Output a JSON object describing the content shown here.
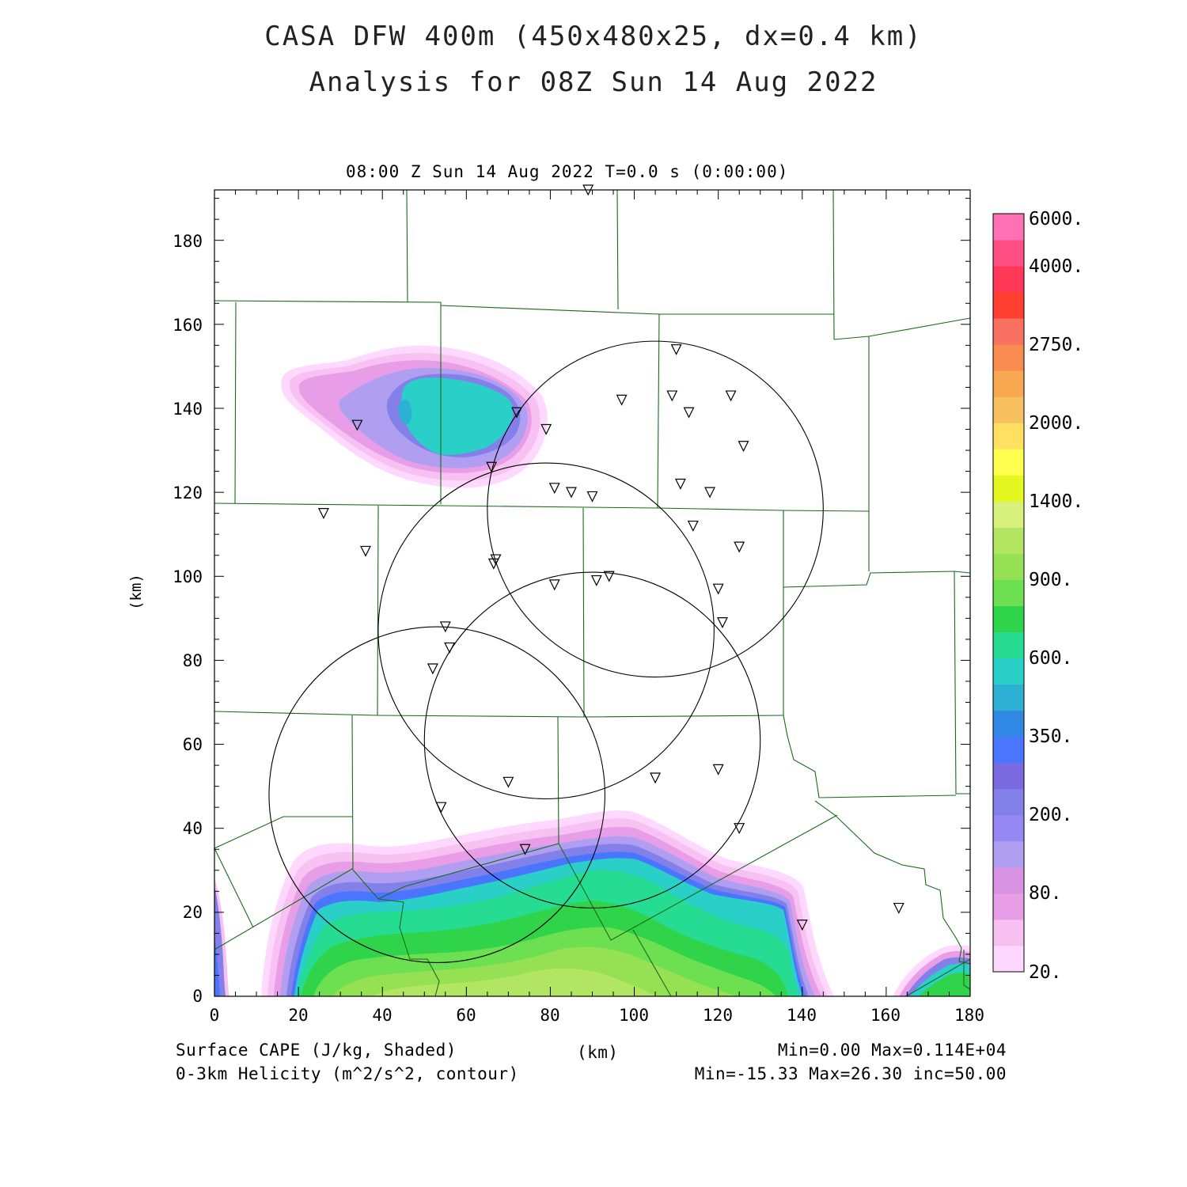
{
  "header": {
    "title_line1": "CASA DFW 400m (450x480x25, dx=0.4 km)",
    "title_line2": "Analysis for 08Z Sun 14 Aug 2022",
    "valid_time": "08:00 Z Sun 14 Aug 2022    T=0.0 s (0:00:00)"
  },
  "axes": {
    "x_label": "(km)",
    "y_label": "(km)",
    "x_range": [
      0,
      180
    ],
    "y_range": [
      0,
      192
    ],
    "x_ticks": [
      "0",
      "20",
      "40",
      "60",
      "80",
      "100",
      "120",
      "140",
      "160",
      "180"
    ],
    "y_ticks": [
      "0",
      "20",
      "40",
      "60",
      "80",
      "100",
      "120",
      "140",
      "160",
      "180"
    ]
  },
  "colorbar": {
    "labels": [
      "20.",
      "80.",
      "200.",
      "350.",
      "600.",
      "900.",
      "1400.",
      "2000.",
      "2750.",
      "4000.",
      "6000."
    ],
    "colors": [
      "#ffd8ff",
      "#f7c2f2",
      "#e79ee6",
      "#d892e2",
      "#b09ef0",
      "#9688f4",
      "#8480ea",
      "#7a6ce0",
      "#4a76ff",
      "#3088e4",
      "#2cb0d4",
      "#2ad0c8",
      "#26dc92",
      "#30d44a",
      "#6ce050",
      "#96e054",
      "#b2e662",
      "#d8f07c",
      "#e4f820",
      "#ffff50",
      "#ffe060",
      "#f7c060",
      "#f8a850",
      "#f88c50",
      "#f87060",
      "#ff4030",
      "#ff3858",
      "#ff4f85",
      "#ff70b4"
    ]
  },
  "footer": {
    "left_line1": "Surface CAPE (J/kg, Shaded)",
    "left_line2": "0-3km Helicity (m^2/s^2, contour)",
    "center_label": "(km)",
    "right_line1": "Min=0.00 Max=0.114E+04",
    "right_line2": "Min=-15.33 Max=26.30 inc=50.00"
  },
  "map_data": {
    "radar_rings_km": [
      {
        "cx": 105,
        "cy": 116,
        "r": 40
      },
      {
        "cx": 79,
        "cy": 87,
        "r": 40
      },
      {
        "cx": 90,
        "cy": 61,
        "r": 40
      },
      {
        "cx": 53,
        "cy": 48,
        "r": 40
      }
    ],
    "stations_km": [
      [
        89,
        192
      ],
      [
        110,
        154
      ],
      [
        97,
        142
      ],
      [
        109,
        143
      ],
      [
        123,
        143
      ],
      [
        113,
        139
      ],
      [
        126,
        131
      ],
      [
        79,
        135
      ],
      [
        72,
        139
      ],
      [
        34,
        136
      ],
      [
        66,
        126
      ],
      [
        81,
        121
      ],
      [
        85,
        120
      ],
      [
        90,
        119
      ],
      [
        111,
        122
      ],
      [
        118,
        120
      ],
      [
        26,
        115
      ],
      [
        114,
        112
      ],
      [
        125,
        107
      ],
      [
        36,
        106
      ],
      [
        67,
        104
      ],
      [
        66.5,
        103
      ],
      [
        81,
        98
      ],
      [
        91,
        99
      ],
      [
        94,
        100
      ],
      [
        120,
        97
      ],
      [
        121,
        89
      ],
      [
        55,
        88
      ],
      [
        56,
        83
      ],
      [
        52,
        78
      ],
      [
        70,
        51
      ],
      [
        105,
        52
      ],
      [
        120,
        54
      ],
      [
        54,
        45
      ],
      [
        125,
        40
      ],
      [
        74,
        35
      ],
      [
        140,
        17
      ],
      [
        163,
        21
      ]
    ]
  }
}
